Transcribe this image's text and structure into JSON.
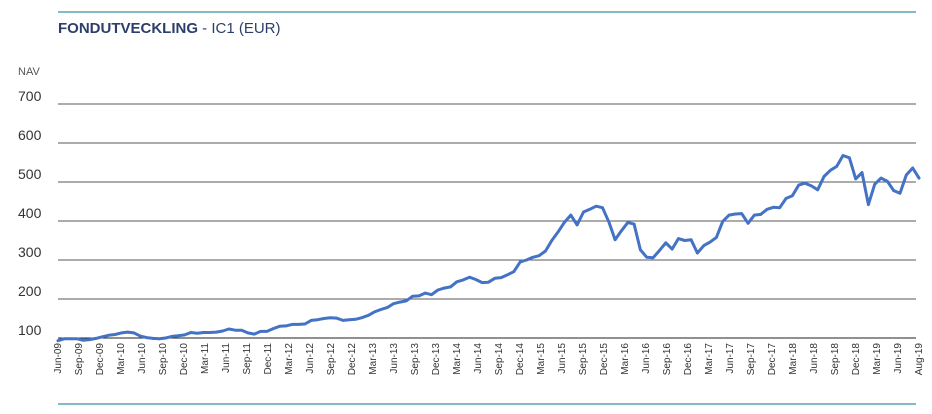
{
  "chart_data": {
    "type": "line",
    "title_bold": "FONDUTVECKLING",
    "title_rest": " - IC1 (EUR)",
    "ylabel": "NAV",
    "xlabel": "",
    "ylim": [
      100,
      700
    ],
    "yticks": [
      "100",
      "200",
      "300",
      "400",
      "500",
      "600",
      "700"
    ],
    "grid": true,
    "line_color": "#4472c4",
    "rule_color": "#5aa3b5",
    "xticks": [
      "Jun-09",
      "Sep-09",
      "Dec-09",
      "Mar-10",
      "Jun-10",
      "Sep-10",
      "Dec-10",
      "Mar-11",
      "Jun-11",
      "Sep-11",
      "Dec-11",
      "Mar-12",
      "Jun-12",
      "Sep-12",
      "Dec-12",
      "Mar-13",
      "Jun-13",
      "Sep-13",
      "Dec-13",
      "Mar-14",
      "Jun-14",
      "Sep-14",
      "Dec-14",
      "Mar-15",
      "Jun-15",
      "Sep-15",
      "Dec-15",
      "Mar-16",
      "Jun-16",
      "Sep-16",
      "Dec-16",
      "Mar-17",
      "Jun-17",
      "Sep-17",
      "Dec-17",
      "Mar-18",
      "Jun-18",
      "Sep-18",
      "Dec-18",
      "Mar-19",
      "Jun-19",
      "Aug-19"
    ],
    "series": [
      {
        "values": [
          93,
          98,
          98,
          98,
          94,
          96,
          99,
          103,
          107,
          109,
          113,
          115,
          113,
          105,
          101,
          99,
          98,
          100,
          104,
          106,
          108,
          114,
          112,
          114,
          114,
          115,
          118,
          123,
          120,
          120,
          113,
          110,
          117,
          117,
          124,
          130,
          131,
          135,
          135,
          136,
          145,
          147,
          150,
          152,
          151,
          145,
          147,
          148,
          152,
          158,
          167,
          173,
          178,
          188,
          192,
          195,
          207,
          208,
          215,
          211,
          223,
          228,
          231,
          244,
          249,
          256,
          250,
          242,
          243,
          253,
          255,
          262,
          270,
          295,
          300,
          307,
          311,
          323,
          350,
          372,
          397,
          415,
          390,
          423,
          430,
          438,
          434,
          398,
          352,
          375,
          396,
          392,
          326,
          307,
          306,
          324,
          344,
          328,
          355,
          350,
          352,
          318,
          337,
          346,
          358,
          399,
          415,
          418,
          419,
          394,
          415,
          417,
          430,
          435,
          434,
          458,
          465,
          492,
          497,
          490,
          480,
          514,
          530,
          540,
          568,
          562,
          508,
          524,
          442,
          494,
          510,
          502,
          478,
          471,
          518,
          536,
          510
        ]
      }
    ]
  }
}
